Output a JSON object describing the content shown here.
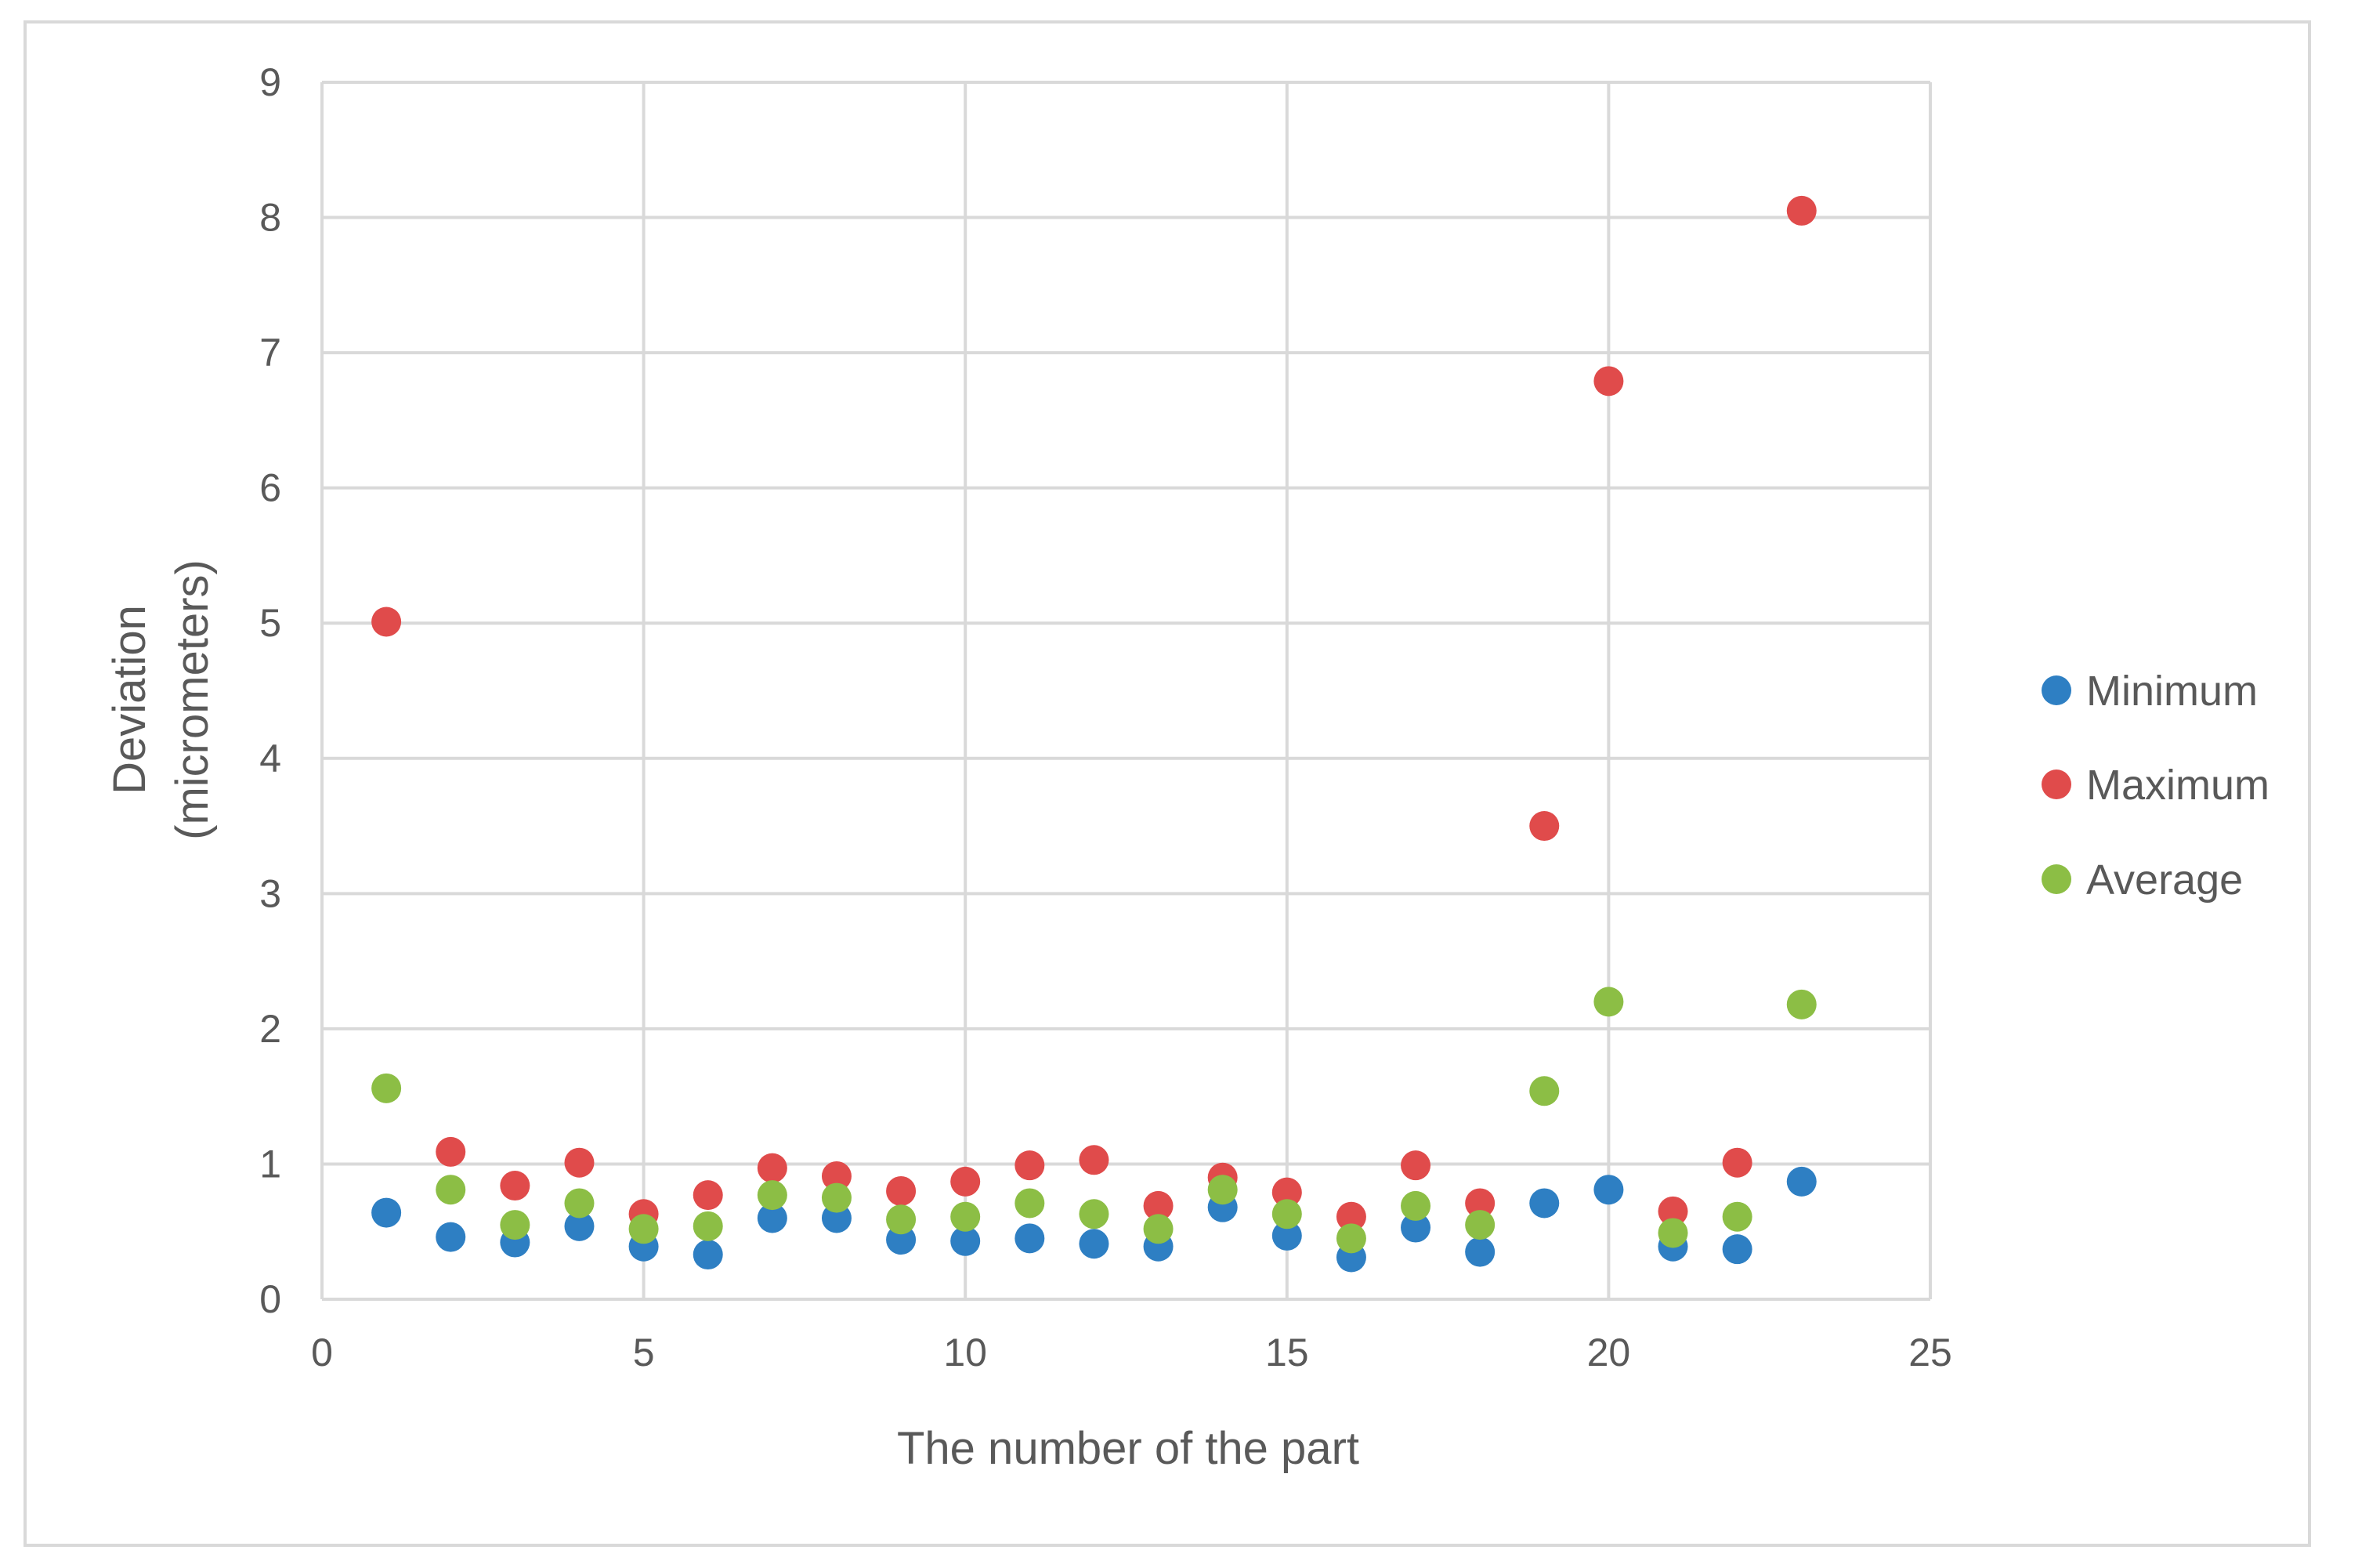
{
  "chart_data": {
    "type": "scatter",
    "title": "",
    "xlabel": "The number of the part",
    "ylabel_lines": [
      "Deviation",
      "(micrometers)"
    ],
    "xlim": [
      0,
      25
    ],
    "ylim": [
      0,
      9
    ],
    "xticks": [
      0,
      5,
      10,
      15,
      20,
      25
    ],
    "yticks": [
      0,
      1,
      2,
      3,
      4,
      5,
      6,
      7,
      8,
      9
    ],
    "grid": true,
    "legend_position": "right",
    "x": [
      1,
      2,
      3,
      4,
      5,
      6,
      7,
      8,
      9,
      10,
      11,
      12,
      13,
      14,
      15,
      16,
      17,
      18,
      19,
      20,
      21,
      22,
      23
    ],
    "series": [
      {
        "name": "Minimum",
        "color": "#2e7fc3",
        "values": [
          0.64,
          0.46,
          0.42,
          0.54,
          0.39,
          0.33,
          0.6,
          0.6,
          0.44,
          0.43,
          0.45,
          0.41,
          0.39,
          0.68,
          0.47,
          0.31,
          0.53,
          0.35,
          0.71,
          0.81,
          0.39,
          0.37,
          0.87
        ]
      },
      {
        "name": "Maximum",
        "color": "#e04b4b",
        "values": [
          5.01,
          1.09,
          0.84,
          1.01,
          0.63,
          0.77,
          0.97,
          0.91,
          0.8,
          0.87,
          0.99,
          1.03,
          0.69,
          0.9,
          0.79,
          0.61,
          0.99,
          0.71,
          3.5,
          6.79,
          0.65,
          1.01,
          8.05
        ]
      },
      {
        "name": "Average",
        "color": "#8cbe45",
        "values": [
          1.56,
          0.81,
          0.55,
          0.71,
          0.52,
          0.54,
          0.77,
          0.75,
          0.59,
          0.61,
          0.71,
          0.63,
          0.52,
          0.81,
          0.63,
          0.45,
          0.69,
          0.55,
          1.54,
          2.2,
          0.49,
          0.61,
          2.18
        ]
      }
    ]
  }
}
